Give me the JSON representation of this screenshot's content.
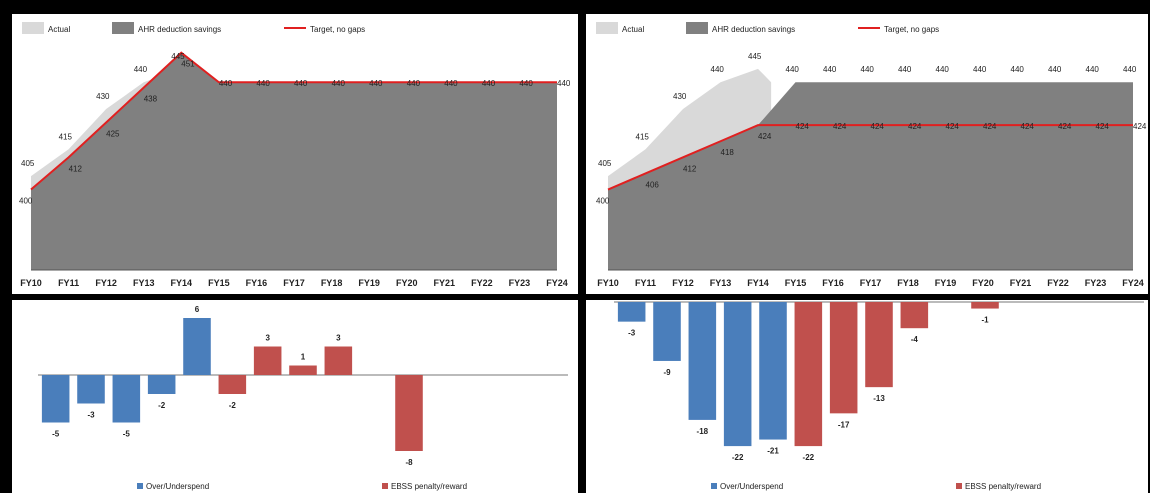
{
  "chart_data": [
    {
      "type": "area",
      "categories": [
        "FY10",
        "FY11",
        "FY12",
        "FY13",
        "FY14",
        "FY15",
        "FY16",
        "FY17",
        "FY18",
        "FY19",
        "FY20",
        "FY21",
        "FY22",
        "FY23",
        "FY24"
      ],
      "legend": [
        "Actual",
        "AHR deduction savings",
        "Target, no gaps"
      ],
      "series": [
        {
          "name": "Actual",
          "values": [
            405,
            415,
            430,
            440,
            445,
            null,
            null,
            null,
            null,
            null,
            null,
            null,
            null,
            null,
            null
          ]
        },
        {
          "name": "AHR deduction savings",
          "values": [
            400,
            412,
            425,
            438,
            451,
            440,
            440,
            440,
            440,
            440,
            440,
            440,
            440,
            440,
            440
          ]
        },
        {
          "name": "Target, no gaps",
          "values": [
            400,
            412,
            425,
            438,
            451,
            440,
            440,
            440,
            440,
            440,
            440,
            440,
            440,
            440,
            440
          ]
        }
      ],
      "labels_top": [
        "405",
        "415",
        "430",
        "440",
        "445",
        "",
        "",
        "",
        "",
        "",
        "",
        "",
        "",
        "",
        ""
      ],
      "labels_mid": [
        "400",
        "412",
        "425",
        "438",
        "451",
        "440",
        "440",
        "440",
        "440",
        "440",
        "440",
        "440",
        "440",
        "440",
        "440"
      ],
      "ylim": [
        370,
        455
      ],
      "colors": {
        "actual": "#d9d9d9",
        "area": "#808080",
        "target": "#e02020"
      }
    },
    {
      "type": "area",
      "categories": [
        "FY10",
        "FY11",
        "FY12",
        "FY13",
        "FY14",
        "FY15",
        "FY16",
        "FY17",
        "FY18",
        "FY19",
        "FY20",
        "FY21",
        "FY22",
        "FY23",
        "FY24"
      ],
      "legend": [
        "Actual",
        "AHR deduction savings",
        "Target, no gaps"
      ],
      "series": [
        {
          "name": "Actual",
          "values": [
            405,
            415,
            430,
            440,
            445,
            null,
            null,
            null,
            null,
            null,
            null,
            null,
            null,
            null,
            null
          ]
        },
        {
          "name": "AHR deduction savings",
          "values": [
            400,
            406,
            412,
            418,
            424,
            440,
            440,
            440,
            440,
            440,
            440,
            440,
            440,
            440,
            440
          ]
        },
        {
          "name": "Target, no gaps",
          "values": [
            400,
            406,
            412,
            418,
            424,
            424,
            424,
            424,
            424,
            424,
            424,
            424,
            424,
            424,
            424
          ]
        }
      ],
      "labels_top": [
        "405",
        "415",
        "430",
        "440",
        "445",
        "440",
        "440",
        "440",
        "440",
        "440",
        "440",
        "440",
        "440",
        "440",
        "440"
      ],
      "labels_mid": [
        "400",
        "406",
        "412",
        "418",
        "424",
        "424",
        "424",
        "424",
        "424",
        "424",
        "424",
        "424",
        "424",
        "424",
        "424"
      ],
      "ylim": [
        370,
        455
      ],
      "colors": {
        "actual": "#d9d9d9",
        "area": "#808080",
        "target": "#e02020"
      }
    },
    {
      "type": "bar",
      "categories": [
        "FY10",
        "FY11",
        "FY12",
        "FY13",
        "FY14",
        "FY15",
        "FY16",
        "FY17",
        "FY18",
        "FY19",
        "FY20",
        "FY21",
        "FY22",
        "FY23",
        "FY24"
      ],
      "series": [
        {
          "name": "Over/Underspend",
          "values": [
            -5,
            -3,
            -5,
            -2,
            6,
            null,
            null,
            null,
            null,
            null,
            null,
            null,
            null,
            null,
            null
          ],
          "color": "#4a7ebb"
        },
        {
          "name": "EBSS penalty/reward",
          "values": [
            null,
            null,
            null,
            null,
            null,
            -2,
            3,
            1,
            3,
            null,
            -8,
            null,
            null,
            null,
            null
          ],
          "color": "#c0504d"
        }
      ],
      "data_labels": [
        "-5",
        "-3",
        "-5",
        "-2",
        "6",
        "-2",
        "3",
        "1",
        "3",
        "",
        "-8",
        "",
        "",
        "",
        ""
      ],
      "ylim": [
        -9,
        7
      ]
    },
    {
      "type": "bar",
      "categories": [
        "FY10",
        "FY11",
        "FY12",
        "FY13",
        "FY14",
        "FY15",
        "FY16",
        "FY17",
        "FY18",
        "FY19",
        "FY20",
        "FY21",
        "FY22",
        "FY23",
        "FY24"
      ],
      "series": [
        {
          "name": "Over/Underspend",
          "values": [
            -3,
            -9,
            -18,
            -22,
            -21,
            null,
            null,
            null,
            null,
            null,
            null,
            null,
            null,
            null,
            null
          ],
          "color": "#4a7ebb"
        },
        {
          "name": "EBSS penalty/reward",
          "values": [
            null,
            null,
            null,
            null,
            null,
            -22,
            -17,
            -13,
            -4,
            null,
            -1,
            null,
            null,
            null,
            null
          ],
          "color": "#c0504d"
        }
      ],
      "data_labels": [
        "-3",
        "-9",
        "-18",
        "-22",
        "-21",
        "-22",
        "-17",
        "-13",
        "-4",
        "",
        "-1",
        "",
        "",
        "",
        ""
      ],
      "ylim": [
        -23.5,
        0
      ]
    }
  ]
}
